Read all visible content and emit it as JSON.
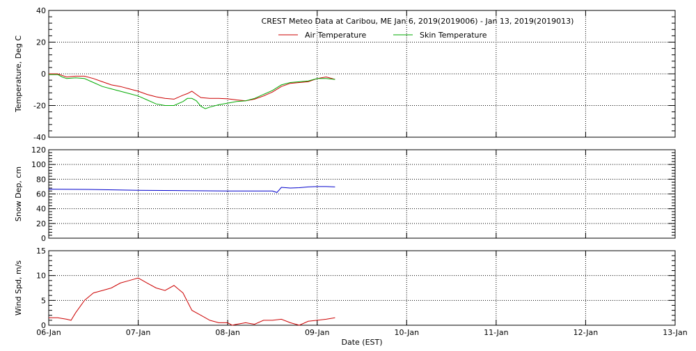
{
  "chart_data": [
    {
      "type": "line",
      "title": "CREST Meteo Data at Caribou, ME   Jan  6, 2019(2019006) - Jan 13, 2019(2019013)",
      "ylabel": "Temperature, Deg C",
      "ylim": [
        -40,
        40
      ],
      "yticks": [
        -40,
        -20,
        0,
        20,
        40
      ],
      "xlim": [
        0,
        7
      ],
      "legend": "top-center",
      "grid": true,
      "series": [
        {
          "name": "Air Temperature",
          "color": "#cc0000",
          "x": [
            0.0,
            0.1,
            0.15,
            0.2,
            0.3,
            0.4,
            0.5,
            0.6,
            0.7,
            0.8,
            0.9,
            1.0,
            1.1,
            1.2,
            1.3,
            1.4,
            1.5,
            1.55,
            1.6,
            1.65,
            1.7,
            1.8,
            1.9,
            2.0,
            2.1,
            2.2,
            2.3,
            2.4,
            2.5,
            2.6,
            2.7,
            2.8,
            2.9,
            3.0,
            3.1,
            3.2
          ],
          "y": [
            0,
            0,
            -1,
            -2,
            -1.5,
            -1.5,
            -3,
            -5,
            -7,
            -8,
            -9.5,
            -11,
            -13,
            -14.5,
            -15.5,
            -16,
            -13.5,
            -12.5,
            -11,
            -13,
            -15,
            -15.5,
            -15.5,
            -15.8,
            -16.5,
            -17,
            -16,
            -14,
            -11.5,
            -8,
            -6,
            -5.5,
            -5,
            -3,
            -2,
            -3.5
          ]
        },
        {
          "name": "Skin Temperature",
          "color": "#00aa00",
          "x": [
            0.0,
            0.1,
            0.15,
            0.2,
            0.3,
            0.4,
            0.5,
            0.6,
            0.7,
            0.8,
            0.9,
            1.0,
            1.1,
            1.2,
            1.3,
            1.4,
            1.5,
            1.55,
            1.6,
            1.65,
            1.7,
            1.75,
            1.8,
            1.9,
            2.0,
            2.1,
            2.2,
            2.3,
            2.4,
            2.5,
            2.6,
            2.7,
            2.8,
            2.9,
            3.0,
            3.1,
            3.2
          ],
          "y": [
            -0.5,
            -0.5,
            -2,
            -3,
            -2.5,
            -3,
            -5.5,
            -8,
            -9.5,
            -11,
            -12.5,
            -14,
            -16.5,
            -19,
            -20,
            -20,
            -17.5,
            -15.5,
            -15.5,
            -17,
            -20.5,
            -22,
            -21,
            -19.5,
            -18.5,
            -17.5,
            -17,
            -15.5,
            -13,
            -10.5,
            -7,
            -5.5,
            -5,
            -4.5,
            -3,
            -3,
            -3.5
          ]
        }
      ]
    },
    {
      "type": "line",
      "ylabel": "Snow Dep, cm",
      "ylim": [
        0,
        120
      ],
      "yticks": [
        0,
        20,
        40,
        60,
        80,
        100,
        120
      ],
      "xlim": [
        0,
        7
      ],
      "grid": true,
      "series": [
        {
          "color": "#0000cc",
          "x": [
            0.0,
            0.5,
            1.0,
            1.5,
            2.0,
            2.5,
            2.55,
            2.6,
            2.7,
            2.8,
            2.9,
            3.0,
            3.1,
            3.2
          ],
          "y": [
            66.5,
            66,
            65,
            64.5,
            64,
            64,
            62,
            69,
            68,
            68.5,
            69.5,
            70,
            70,
            69.5
          ]
        }
      ]
    },
    {
      "type": "line",
      "ylabel": "Wind Spd, m/s",
      "ylim": [
        0,
        15
      ],
      "yticks": [
        0,
        5,
        10,
        15
      ],
      "xlim": [
        0,
        7
      ],
      "xlabel": "Date (EST)",
      "grid": true,
      "categories": [
        "06-Jan",
        "07-Jan",
        "08-Jan",
        "09-Jan",
        "10-Jan",
        "11-Jan",
        "12-Jan",
        "13-Jan"
      ],
      "series": [
        {
          "color": "#cc0000",
          "x": [
            0.0,
            0.1,
            0.2,
            0.25,
            0.3,
            0.4,
            0.5,
            0.6,
            0.7,
            0.8,
            0.9,
            1.0,
            1.1,
            1.2,
            1.3,
            1.4,
            1.5,
            1.6,
            1.7,
            1.8,
            1.9,
            2.0,
            2.05,
            2.1,
            2.2,
            2.3,
            2.4,
            2.5,
            2.6,
            2.7,
            2.8,
            2.9,
            3.0,
            3.1,
            3.2
          ],
          "y": [
            1.5,
            1.5,
            1.2,
            1.0,
            2.5,
            5.0,
            6.5,
            7.0,
            7.5,
            8.5,
            9.0,
            9.5,
            8.5,
            7.5,
            7.0,
            8.0,
            6.5,
            3.0,
            2.0,
            1.0,
            0.5,
            0.5,
            0.0,
            0.2,
            0.5,
            0.2,
            1.0,
            1.0,
            1.2,
            0.5,
            0.0,
            0.8,
            1.0,
            1.2,
            1.5
          ]
        }
      ]
    }
  ]
}
